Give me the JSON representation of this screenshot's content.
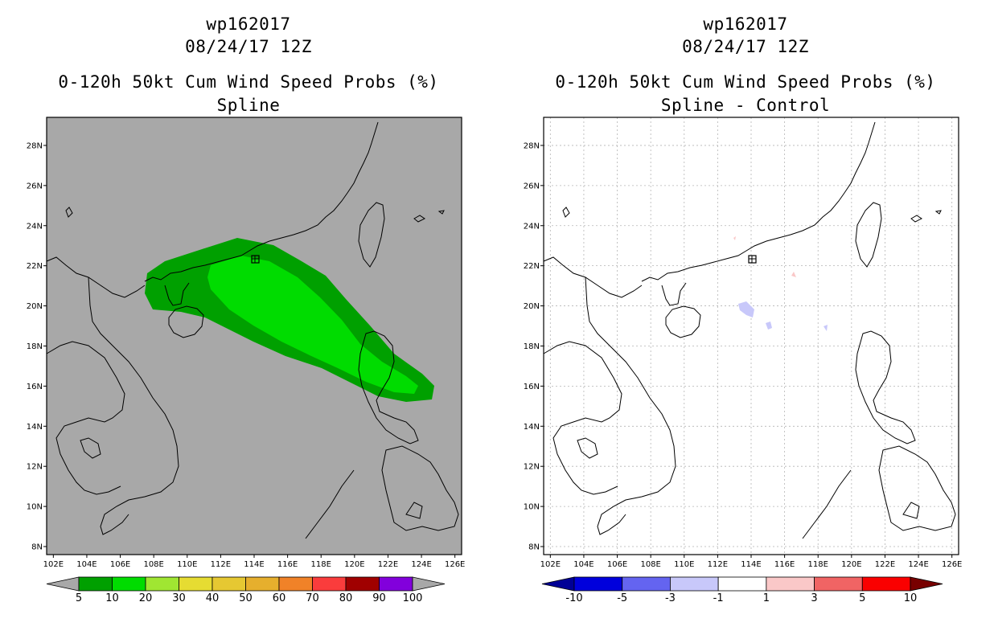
{
  "panels": [
    {
      "storm_id": "wp162017",
      "datetime": "08/24/17 12Z",
      "product": "0-120h 50kt Cum Wind Speed Probs (%)",
      "method": "Spline",
      "background": "#a8a8a8",
      "colorbar": {
        "labels": [
          "5",
          "10",
          "20",
          "30",
          "40",
          "50",
          "60",
          "70",
          "80",
          "90",
          "100"
        ],
        "colors": [
          "#00a000",
          "#00dc00",
          "#a0e632",
          "#e6dc32",
          "#e6c832",
          "#e6af2d",
          "#f08228",
          "#fa3c3c",
          "#a00000",
          "#8200dc"
        ],
        "under_color": "#a8a8a8",
        "over_color": "#a8a8a8"
      }
    },
    {
      "storm_id": "wp162017",
      "datetime": "08/24/17 12Z",
      "product": "0-120h 50kt Cum Wind Speed Probs (%)",
      "method": "Spline - Control",
      "background": "#ffffff",
      "colorbar": {
        "labels": [
          "-10",
          "-5",
          "-3",
          "-1",
          "1",
          "3",
          "5",
          "10"
        ],
        "colors": [
          "#0000dc",
          "#6464f0",
          "#c8c8fa",
          "#ffffff",
          "#fac8c8",
          "#f06464",
          "#fa0000"
        ],
        "under_color": "#000096",
        "over_color": "#780000"
      }
    }
  ],
  "map": {
    "lon_labels": [
      "102E",
      "104E",
      "106E",
      "108E",
      "110E",
      "112E",
      "114E",
      "116E",
      "118E",
      "120E",
      "122E",
      "124E",
      "126E"
    ],
    "lat_labels": [
      "8N",
      "10N",
      "12N",
      "14N",
      "16N",
      "18N",
      "20N",
      "22N",
      "24N",
      "26N",
      "28N"
    ],
    "lon_range": [
      101.6,
      126.4
    ],
    "lat_range": [
      7.6,
      29.4
    ]
  }
}
